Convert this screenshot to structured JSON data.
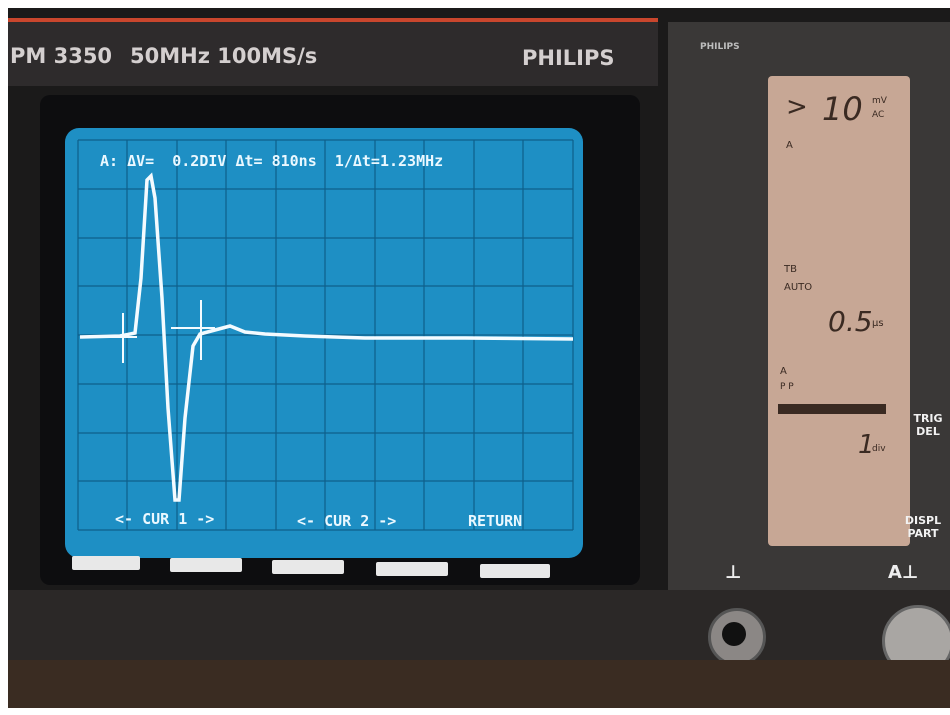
{
  "header": {
    "model": "PM 3350",
    "specs": "50MHz 100MS/s",
    "brand": "PHILIPS"
  },
  "screen": {
    "readout": "A: ΔV=  0.2DIV Δt= 810ns  1/Δt=1.23MHz",
    "softkeys": [
      "<- CUR 1 ->",
      "<- CUR 2 ->",
      "RETURN"
    ]
  },
  "panel": {
    "logo": "PHILIPS",
    "lcd": {
      "arrow": ">",
      "range": "10",
      "range_unit": "mV",
      "coupling": "AC",
      "channel": "A",
      "timebase_label": "TB",
      "trigger_mode": "AUTO",
      "timebase": "0.5",
      "timebase_unit": "µs",
      "trigger_channel": "A",
      "trigger_source": "P P",
      "delay": "1",
      "delay_unit": "div"
    },
    "buttons": [
      "TRIG",
      "DEL",
      "DISPL",
      "PART"
    ],
    "channel_label": "A⊥",
    "ground": "⊥"
  }
}
